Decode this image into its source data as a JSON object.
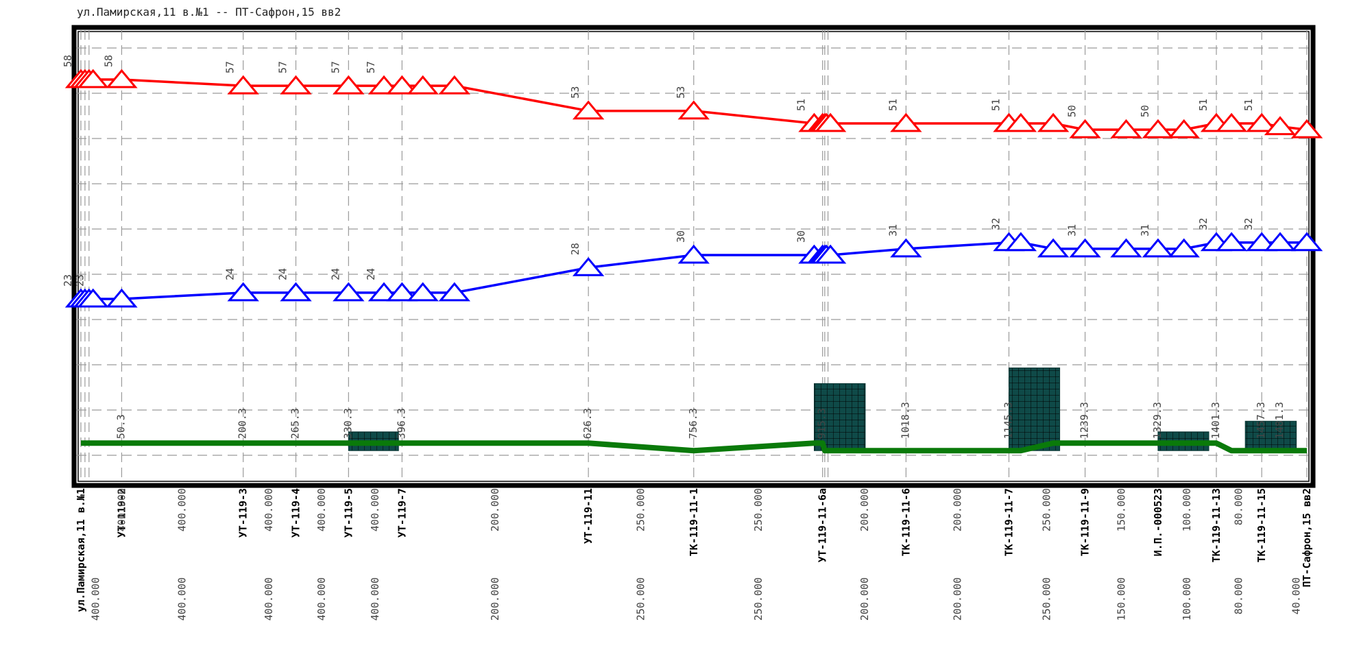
{
  "title": "ул.Памирская,11 в.№1 -- ПТ-Сафрон,15 вв2",
  "chart_data": {
    "type": "line",
    "x_unit": "m",
    "x": [
      0,
      5,
      10,
      15,
      50.3,
      200.3,
      265.3,
      330.3,
      374,
      396.3,
      422,
      461,
      626.3,
      756.3,
      905,
      915.3,
      918,
      920,
      925,
      1018.3,
      1145.3,
      1160,
      1200,
      1239.3,
      1290,
      1329.3,
      1361.3,
      1401.3,
      1420,
      1457.3,
      1480,
      1513
    ],
    "series": [
      {
        "color": "#ff0000",
        "values": [
          58,
          58,
          58,
          58,
          58,
          57,
          57,
          57,
          57,
          57,
          57,
          57,
          53,
          53,
          51,
          51,
          51,
          51,
          51,
          51,
          51,
          51,
          51,
          50,
          50,
          50,
          50,
          51,
          51,
          51,
          50.5,
          50
        ]
      },
      {
        "color": "#0000ff",
        "values": [
          23,
          23,
          23,
          23,
          23,
          24,
          24,
          24,
          24,
          24,
          24,
          24,
          28,
          30,
          30,
          30,
          30,
          30,
          30,
          31,
          32,
          32,
          31,
          31,
          31,
          31,
          31,
          32,
          32,
          32,
          32,
          32
        ]
      },
      {
        "color": "#0a7a0a",
        "values": [
          0,
          0,
          0,
          0,
          0,
          0,
          0,
          0,
          0,
          0,
          0,
          0,
          0,
          -1.2,
          0,
          0,
          -1.2,
          -1.2,
          -1.2,
          -1.2,
          -1.2,
          -1.2,
          0,
          0,
          0,
          0,
          0,
          0,
          -1.2,
          -1.2,
          -1.2,
          -1.2
        ]
      }
    ],
    "value_labels": [
      {
        "x": 0,
        "series": 0,
        "text": "58"
      },
      {
        "x": 50.3,
        "series": 0,
        "text": "58"
      },
      {
        "x": 200.3,
        "series": 0,
        "text": "57"
      },
      {
        "x": 265.3,
        "series": 0,
        "text": "57"
      },
      {
        "x": 330.3,
        "series": 0,
        "text": "57"
      },
      {
        "x": 374,
        "series": 0,
        "text": "57"
      },
      {
        "x": 626.3,
        "series": 0,
        "text": "53"
      },
      {
        "x": 756.3,
        "series": 0,
        "text": "53"
      },
      {
        "x": 905,
        "series": 0,
        "text": "51"
      },
      {
        "x": 1018.3,
        "series": 0,
        "text": "51"
      },
      {
        "x": 1145.3,
        "series": 0,
        "text": "51"
      },
      {
        "x": 1239.3,
        "series": 0,
        "text": "50"
      },
      {
        "x": 1329.3,
        "series": 0,
        "text": "50"
      },
      {
        "x": 1401.3,
        "series": 0,
        "text": "51"
      },
      {
        "x": 1457.3,
        "series": 0,
        "text": "51"
      },
      {
        "x": 0,
        "series": 1,
        "text": "23"
      },
      {
        "x": 15,
        "series": 1,
        "text": "23"
      },
      {
        "x": 200.3,
        "series": 1,
        "text": "24"
      },
      {
        "x": 265.3,
        "series": 1,
        "text": "24"
      },
      {
        "x": 330.3,
        "series": 1,
        "text": "24"
      },
      {
        "x": 374,
        "series": 1,
        "text": "24"
      },
      {
        "x": 626.3,
        "series": 1,
        "text": "28"
      },
      {
        "x": 756.3,
        "series": 1,
        "text": "30"
      },
      {
        "x": 905,
        "series": 1,
        "text": "30"
      },
      {
        "x": 1018.3,
        "series": 1,
        "text": "31"
      },
      {
        "x": 1145.3,
        "series": 1,
        "text": "32"
      },
      {
        "x": 1239.3,
        "series": 1,
        "text": "31"
      },
      {
        "x": 1329.3,
        "series": 1,
        "text": "31"
      },
      {
        "x": 1401.3,
        "series": 1,
        "text": "32"
      },
      {
        "x": 1457.3,
        "series": 1,
        "text": "32"
      }
    ],
    "distance_labels": [
      {
        "x": 50.3,
        "text": "50.3"
      },
      {
        "x": 200.3,
        "text": "200.3"
      },
      {
        "x": 265.3,
        "text": "265.3"
      },
      {
        "x": 330.3,
        "text": "330.3"
      },
      {
        "x": 396.3,
        "text": "396.3"
      },
      {
        "x": 626.3,
        "text": "626.3"
      },
      {
        "x": 756.3,
        "text": "756.3"
      },
      {
        "x": 915.3,
        "text": "915.3"
      },
      {
        "x": 1018.3,
        "text": "1018.3"
      },
      {
        "x": 1145.3,
        "text": "1145.3"
      },
      {
        "x": 1239.3,
        "text": "1239.3"
      },
      {
        "x": 1329.3,
        "text": "1329.3"
      },
      {
        "x": 1401.3,
        "text": "1401.3"
      },
      {
        "x": 1457.3,
        "text": "1457.3"
      },
      {
        "x": 1480,
        "text": "1481.3"
      }
    ],
    "blocks": [
      {
        "x_start": 330.3,
        "x_end": 392,
        "height": 1.8
      },
      {
        "x_start": 905,
        "x_end": 968,
        "height": 9.5
      },
      {
        "x_start": 1145.3,
        "x_end": 1208,
        "height": 12
      },
      {
        "x_start": 1329.3,
        "x_end": 1392,
        "height": 1.8
      },
      {
        "x_start": 1437,
        "x_end": 1500,
        "height": 3.5
      }
    ],
    "nodes": [
      {
        "x": 0,
        "text": "ул.Памирская,11 в.№1",
        "row": 0
      },
      {
        "x": 50.3,
        "text": "УТ-119-2",
        "row": 0
      },
      {
        "x": 200.3,
        "text": "УТ-119-3",
        "row": 0
      },
      {
        "x": 265.3,
        "text": "УТ-119-4",
        "row": 0
      },
      {
        "x": 330.3,
        "text": "УТ-119-5",
        "row": 0
      },
      {
        "x": 396.3,
        "text": "УТ-119-7",
        "row": 0
      },
      {
        "x": 626.3,
        "text": "УТ-119-11",
        "row": 0
      },
      {
        "x": 756.3,
        "text": "ТК-119-11-1",
        "row": 0
      },
      {
        "x": 915.3,
        "text": "УТ-119-11-6а",
        "row": 0
      },
      {
        "x": 1018.3,
        "text": "ТК-119-11-6",
        "row": 0
      },
      {
        "x": 1145.3,
        "text": "ТК-119-11-7",
        "row": 0
      },
      {
        "x": 1239.3,
        "text": "ТК-119-11-9",
        "row": 0
      },
      {
        "x": 1329.3,
        "text": "И.П.-000523",
        "row": 0
      },
      {
        "x": 1401.3,
        "text": "ТК-119-11-13",
        "row": 0
      },
      {
        "x": 1457.3,
        "text": "ТК-119-11-15",
        "row": 0
      },
      {
        "x": 1513,
        "text": "ПТ-Сафрон,15 вв2",
        "row": 0
      }
    ],
    "segment_labels": [
      {
        "x": 50.3,
        "text": "400.000",
        "row": 0
      },
      {
        "x": 125,
        "text": "400.000",
        "row": 0
      },
      {
        "x": 232,
        "text": "400.000",
        "row": 0
      },
      {
        "x": 297,
        "text": "400.000",
        "row": 0
      },
      {
        "x": 363,
        "text": "400.000",
        "row": 0
      },
      {
        "x": 511,
        "text": "200.000",
        "row": 0
      },
      {
        "x": 691,
        "text": "250.000",
        "row": 0
      },
      {
        "x": 836,
        "text": "250.000",
        "row": 0
      },
      {
        "x": 967,
        "text": "200.000",
        "row": 0
      },
      {
        "x": 1082,
        "text": "200.000",
        "row": 0
      },
      {
        "x": 1192,
        "text": "250.000",
        "row": 0
      },
      {
        "x": 1284,
        "text": "150.000",
        "row": 0
      },
      {
        "x": 1365,
        "text": "100.000",
        "row": 0
      },
      {
        "x": 1429,
        "text": "80.000",
        "row": 0
      },
      {
        "x": 18,
        "text": "400.000",
        "row": 1
      },
      {
        "x": 125,
        "text": "400.000",
        "row": 1
      },
      {
        "x": 232,
        "text": "400.000",
        "row": 1
      },
      {
        "x": 297,
        "text": "400.000",
        "row": 1
      },
      {
        "x": 363,
        "text": "400.000",
        "row": 1
      },
      {
        "x": 511,
        "text": "200.000",
        "row": 1
      },
      {
        "x": 691,
        "text": "250.000",
        "row": 1
      },
      {
        "x": 836,
        "text": "250.000",
        "row": 1
      },
      {
        "x": 967,
        "text": "200.000",
        "row": 1
      },
      {
        "x": 1082,
        "text": "200.000",
        "row": 1
      },
      {
        "x": 1192,
        "text": "250.000",
        "row": 1
      },
      {
        "x": 1284,
        "text": "150.000",
        "row": 1
      },
      {
        "x": 1365,
        "text": "100.000",
        "row": 1
      },
      {
        "x": 1429,
        "text": "80.000",
        "row": 1
      },
      {
        "x": 1500,
        "text": "40.000",
        "row": 1
      }
    ],
    "grid": true,
    "xlim": [
      0,
      1513
    ],
    "ylim": [
      -5,
      65
    ]
  }
}
